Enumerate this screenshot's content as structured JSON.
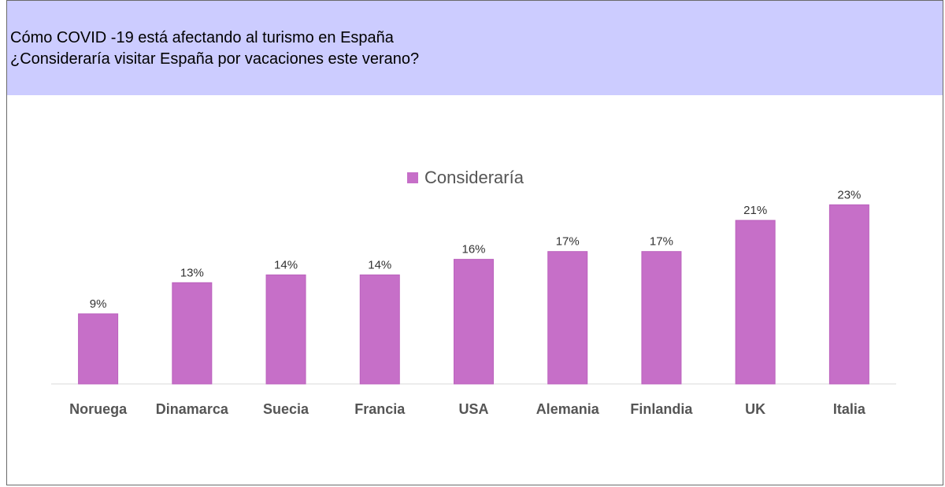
{
  "header": {
    "title": "Cómo COVID -19 está afectando al turismo en España",
    "subtitle": "¿Consideraría visitar España por vacaciones este verano?",
    "background_color": "#ccccff"
  },
  "chart_data": {
    "type": "bar",
    "categories": [
      "Noruega",
      "Dinamarca",
      "Suecia",
      "Francia",
      "USA",
      "Alemania",
      "Finlandia",
      "UK",
      "Italia"
    ],
    "series": [
      {
        "name": "Consideraría",
        "values": [
          9,
          13,
          14,
          14,
          16,
          17,
          17,
          21,
          23
        ],
        "color": "#c66fc8"
      }
    ],
    "value_labels": [
      "9%",
      "13%",
      "14%",
      "14%",
      "16%",
      "17%",
      "17%",
      "21%",
      "23%"
    ],
    "unit": "%",
    "ylim": [
      0,
      23
    ],
    "grid": false,
    "legend_position": "top-center",
    "xlabel": "",
    "ylabel": ""
  }
}
